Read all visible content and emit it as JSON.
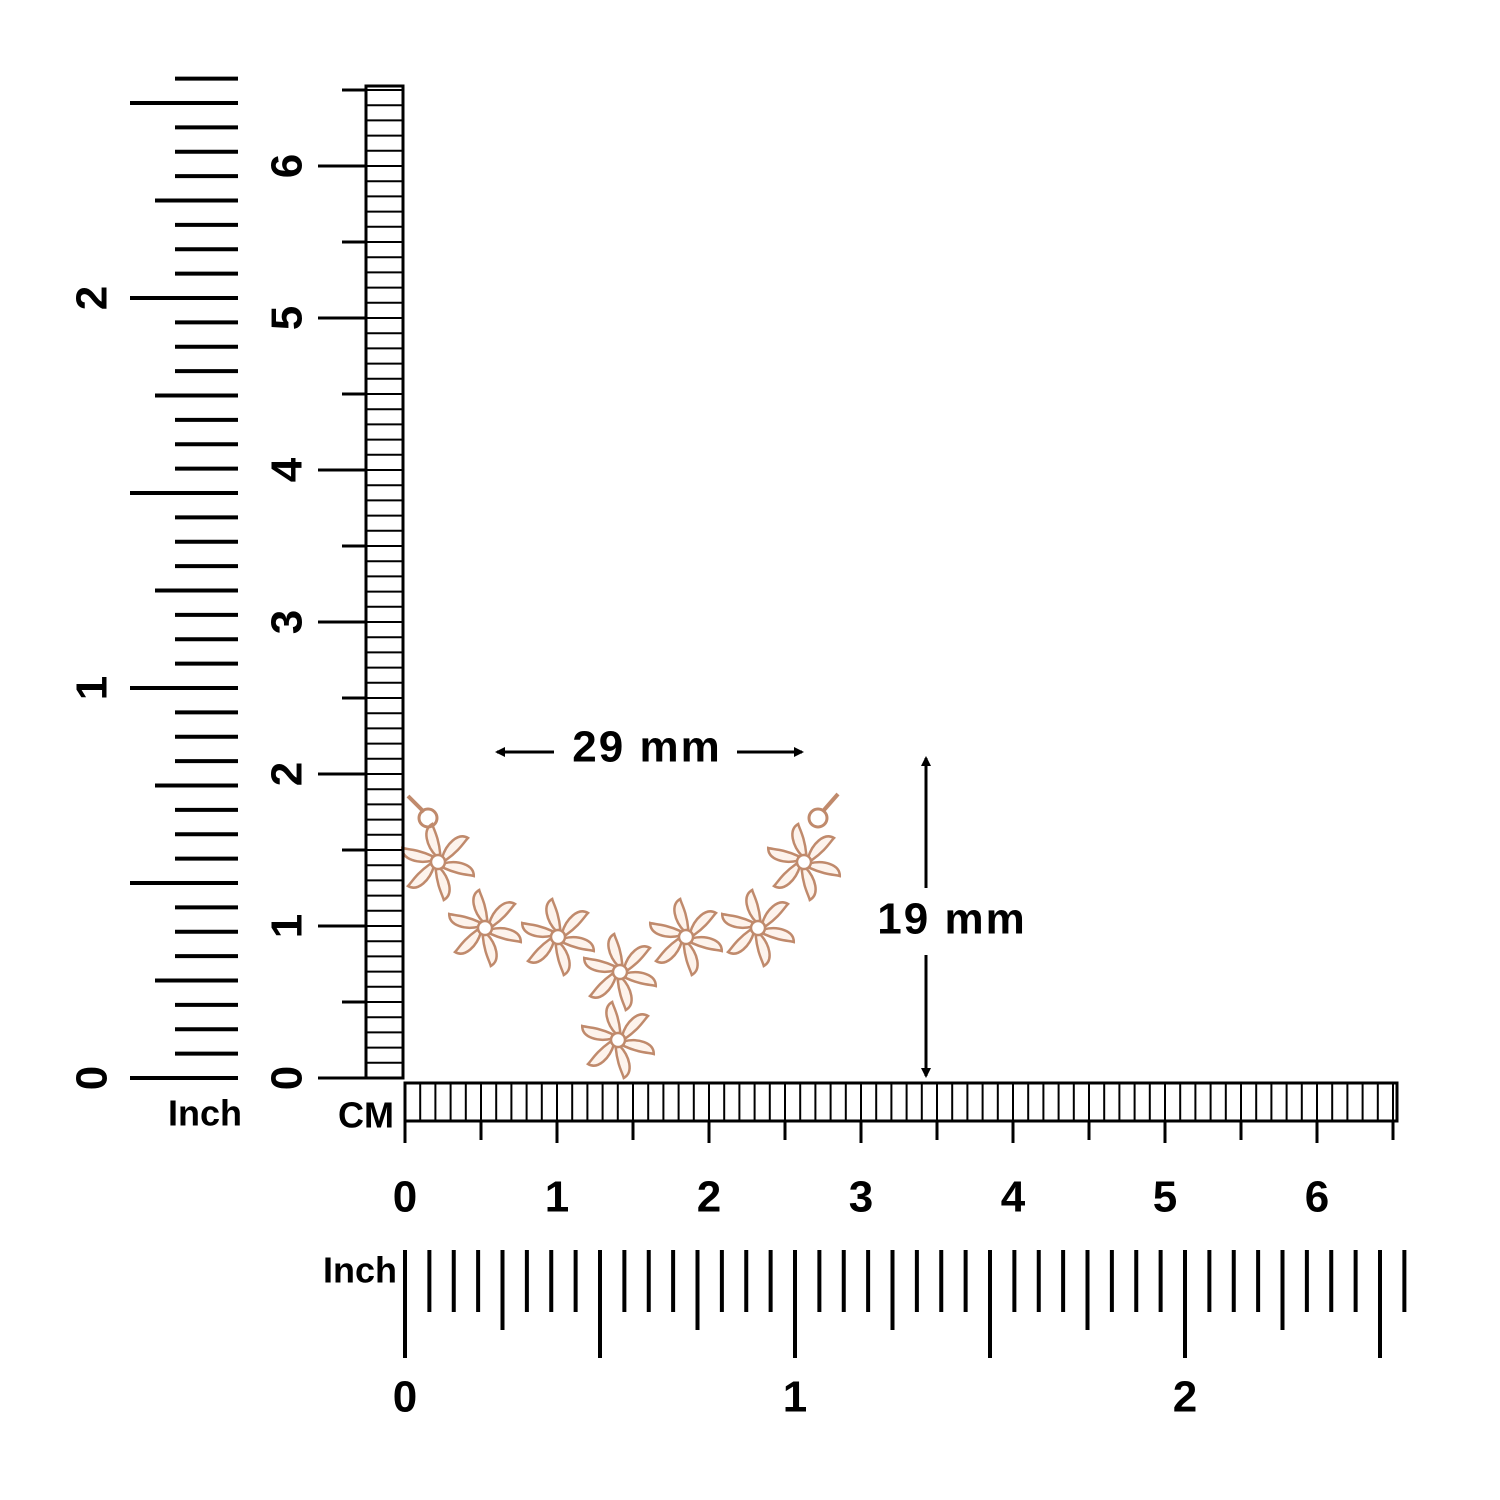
{
  "vertical_inch_ruler": {
    "labels": [
      "0",
      "1",
      "2"
    ],
    "unit": "Inch"
  },
  "vertical_cm_ruler": {
    "labels": [
      "0",
      "1",
      "2",
      "3",
      "4",
      "5",
      "6"
    ]
  },
  "horizontal_cm_ruler": {
    "unit": "CM",
    "labels": [
      "0",
      "1",
      "2",
      "3",
      "4",
      "5",
      "6"
    ]
  },
  "horizontal_inch_ruler": {
    "unit": "Inch",
    "labels": [
      "0",
      "1",
      "2"
    ]
  },
  "width_dimension": "29 mm",
  "height_dimension": "19 mm"
}
